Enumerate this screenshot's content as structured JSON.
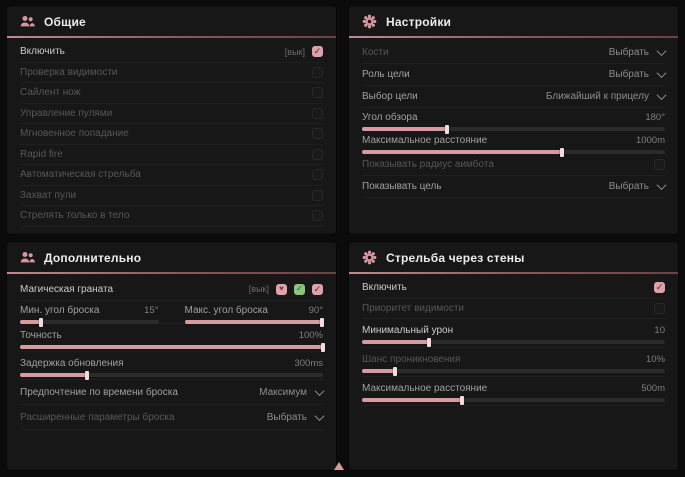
{
  "icons": {
    "check": "✓",
    "heart": "♥",
    "users": "users-icon",
    "gear": "gear-icon",
    "chevron": "chevron-down-icon"
  },
  "colors": {
    "accent": "#dfa0a7",
    "panel_bg": "#171717",
    "header_rule": "#8d545b",
    "background": "#0b0b0b"
  },
  "general": {
    "title": "Общие",
    "enable": {
      "label": "Включить",
      "tag": "[вык]",
      "checked": true
    },
    "visibility_check": {
      "label": "Проверка видимости",
      "checked": false,
      "dim": true
    },
    "silent_knife": {
      "label": "Сайлент нож",
      "checked": false,
      "dim": true
    },
    "bullet_control": {
      "label": "Управление пулями",
      "checked": false,
      "dim": true
    },
    "instant_hit": {
      "label": "Мгновенное попадание",
      "checked": false,
      "dim": true
    },
    "rapid_fire": {
      "label": "Rapid fire",
      "checked": false,
      "dim": true
    },
    "auto_fire": {
      "label": "Автоматическая стрельба",
      "checked": false,
      "dim": true
    },
    "bullet_capture": {
      "label": "Захват пули",
      "checked": false,
      "dim": true
    },
    "body_only": {
      "label": "Стрелять только в тело",
      "checked": false,
      "dim": true
    }
  },
  "settings": {
    "title": "Настройки",
    "bones": {
      "label": "Кости",
      "value": "Выбрать",
      "dim": true
    },
    "target_role": {
      "label": "Роль цели",
      "value": "Выбрать"
    },
    "target_select": {
      "label": "Выбор цели",
      "value": "Ближайший к прицелу"
    },
    "fov": {
      "label": "Угол обзора",
      "value": "180°",
      "percent": 28
    },
    "max_distance": {
      "label": "Максимальное расстояние",
      "value": "1000m",
      "percent": 66
    },
    "show_radius": {
      "label": "Показывать радиус аимбота",
      "checked": false,
      "dim": true
    },
    "show_target": {
      "label": "Показывать цель",
      "value": "Выбрать"
    }
  },
  "additional": {
    "title": "Дополнительно",
    "magic_grenade": {
      "label": "Магическая граната",
      "tag": "[вык]",
      "checked": true
    },
    "min_angle": {
      "label": "Мин. угол броска",
      "value": "15°",
      "percent": 15
    },
    "max_angle": {
      "label": "Макс. угол броска",
      "value": "90°",
      "percent": 99
    },
    "accuracy": {
      "label": "Точность",
      "value": "100%",
      "percent": 100
    },
    "update_delay": {
      "label": "Задержка обновления",
      "value": "300ms",
      "percent": 22
    },
    "throw_time": {
      "label": "Предпочтение по времени броска",
      "value": "Максимум"
    },
    "advanced": {
      "label": "Расширенные параметры броска",
      "value": "Выбрать",
      "dim": true
    }
  },
  "walls": {
    "title": "Стрельба через стены",
    "enable": {
      "label": "Включить",
      "checked": true
    },
    "visibility_priority": {
      "label": "Приоритет видимости",
      "checked": false,
      "dim": true
    },
    "min_damage": {
      "label": "Минимальный урон",
      "value": "10",
      "percent": 22
    },
    "penetration_chance": {
      "label": "Шанс проникновения",
      "value": "10%",
      "percent": 11,
      "dim": true
    },
    "max_distance": {
      "label": "Максимальное расстояние",
      "value": "500m",
      "percent": 33
    }
  }
}
